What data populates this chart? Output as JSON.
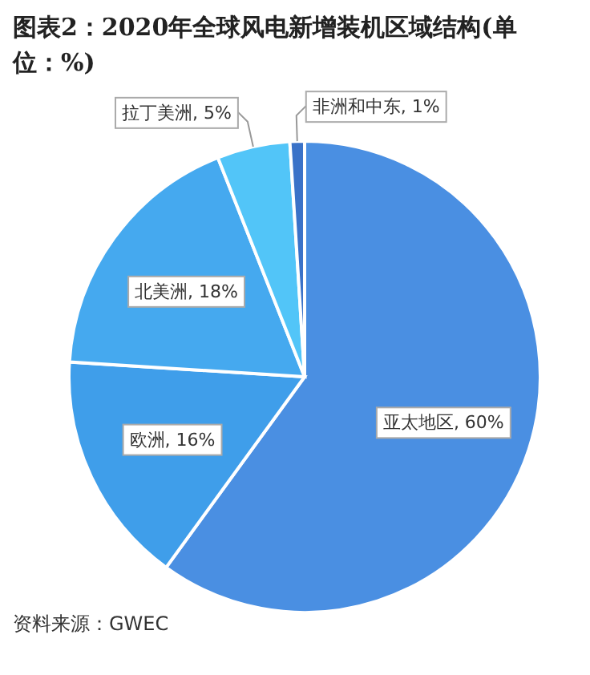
{
  "chart_data": {
    "type": "pie",
    "title": "图表2：2020年全球风电新增装机区域结构(单位：%)",
    "categories": [
      "亚太地区",
      "欧洲",
      "北美洲",
      "拉丁美洲",
      "非洲和中东"
    ],
    "values": [
      60,
      16,
      18,
      5,
      1
    ],
    "colors": [
      "#4a8fe2",
      "#3f9eea",
      "#45a9ef",
      "#52c5f8",
      "#3a72c8"
    ],
    "value_labels": [
      ", 60%",
      ", 16%",
      ", 18%",
      ", 5%",
      ", 1%"
    ],
    "legend": false,
    "annotations": [
      "资料来源：GWEC"
    ]
  }
}
